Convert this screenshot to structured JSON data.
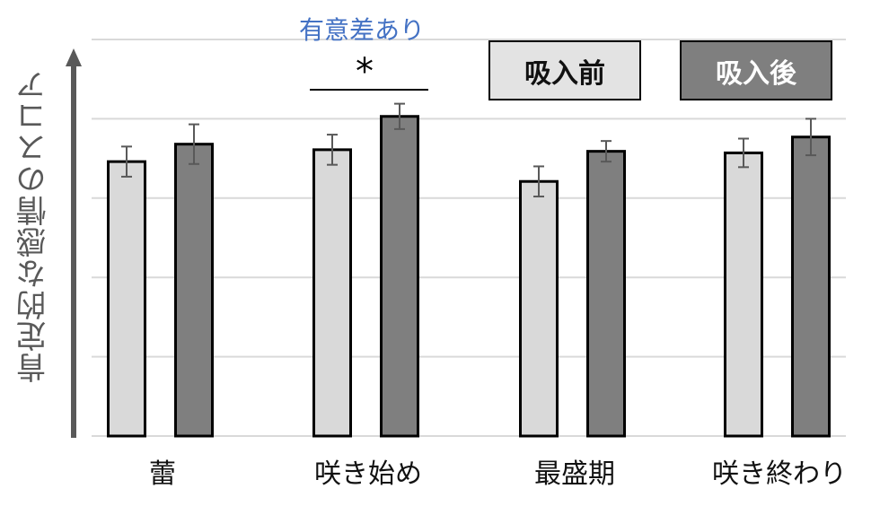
{
  "chart_data": {
    "type": "bar",
    "title": "",
    "xlabel": "",
    "ylabel": "肯定的な感情のスコア",
    "ylim": [
      0,
      5
    ],
    "y_tick_labels_shown": false,
    "grid": true,
    "categories": [
      "蕾",
      "咲き始め",
      "最盛期",
      "咲き終わり"
    ],
    "series": [
      {
        "name": "吸入前",
        "color": "#d9d9d9",
        "values": [
          3.46,
          3.61,
          3.21,
          3.57
        ],
        "error": [
          0.19,
          0.19,
          0.19,
          0.18
        ]
      },
      {
        "name": "吸入後",
        "color": "#7f7f7f",
        "values": [
          3.68,
          4.03,
          3.59,
          3.77
        ],
        "error": [
          0.25,
          0.16,
          0.13,
          0.23
        ]
      }
    ],
    "legend": {
      "position": "top-right",
      "entries": [
        "吸入前",
        "吸入後"
      ]
    },
    "annotations": [
      {
        "text": "有意差あり",
        "color": "#4472c4",
        "category": "咲き始め"
      },
      {
        "text": "*",
        "category": "咲き始め",
        "type": "significance-bracket"
      }
    ]
  },
  "labels": {
    "ylabel": "肯定的な感情のスコア",
    "significance_text": "有意差あり",
    "significance_mark": "*",
    "legend_before": "吸入前",
    "legend_after": "吸入後",
    "categories": [
      "蕾",
      "咲き始め",
      "最盛期",
      "咲き終わり"
    ]
  },
  "colors": {
    "before_fill": "#d9d9d9",
    "after_fill": "#7f7f7f",
    "bar_border": "#000000",
    "error_bar": "#595959",
    "gridline": "#d9d9d9",
    "axis_arrow": "#595959",
    "significance_text": "#4472c4"
  }
}
